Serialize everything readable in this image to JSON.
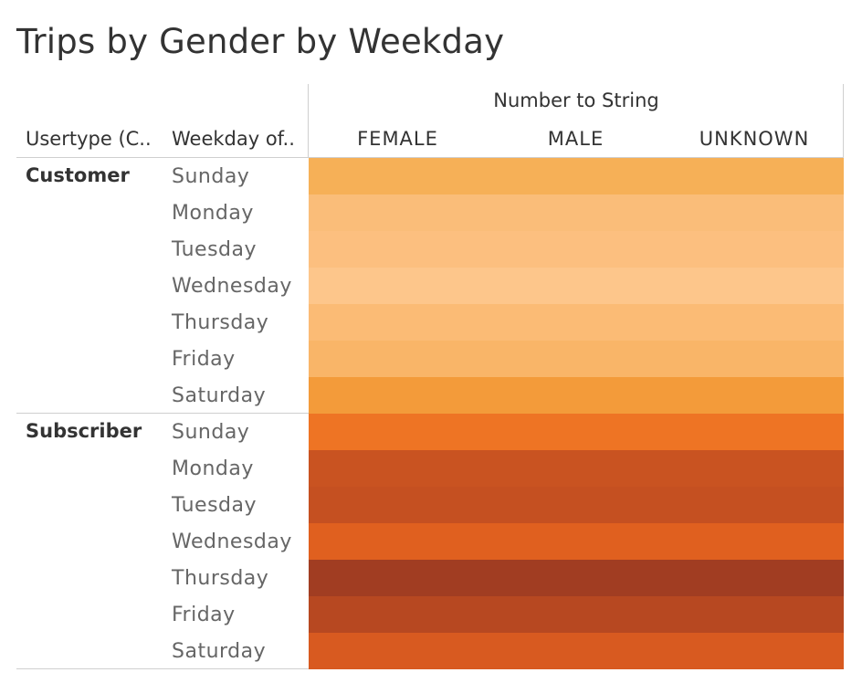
{
  "title": "Trips by Gender by Weekday",
  "column_group_header": "Number to String",
  "row_header_1": "Usertype (C..",
  "row_header_2": "Weekday of..",
  "columns": [
    "FEMALE",
    "MALE",
    "UNKNOWN"
  ],
  "chart_data": {
    "type": "heatmap",
    "title": "Trips by Gender by Weekday",
    "x_field": "Number to String",
    "x_categories": [
      "FEMALE",
      "MALE",
      "UNKNOWN"
    ],
    "row_fields": [
      "Usertype (C..",
      "Weekday of.."
    ],
    "groups": [
      {
        "name": "Customer",
        "days": [
          "Sunday",
          "Monday",
          "Tuesday",
          "Wednesday",
          "Thursday",
          "Friday",
          "Saturday"
        ],
        "colors": [
          "#f6b057",
          "#fabd79",
          "#fcbf7f",
          "#fdc68b",
          "#fbbb75",
          "#f9b568",
          "#f39b3a"
        ]
      },
      {
        "name": "Subscriber",
        "days": [
          "Sunday",
          "Monday",
          "Tuesday",
          "Wednesday",
          "Thursday",
          "Friday",
          "Saturday"
        ],
        "colors": [
          "#ee7424",
          "#c95321",
          "#c55021",
          "#e0601f",
          "#a13d22",
          "#b74821",
          "#d85a20"
        ]
      }
    ],
    "color_scale": "orange (light = fewer trips, dark = more trips)"
  }
}
